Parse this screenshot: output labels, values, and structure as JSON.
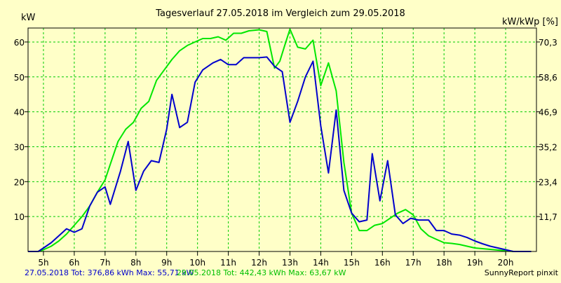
{
  "chart_data": {
    "type": "line",
    "title": "Tagesverlauf 27.05.2018 im Vergleich zum 29.05.2018",
    "ylabel": "kW",
    "ylabel_right": "kW/kWp [%]",
    "xlim": [
      4.5,
      21
    ],
    "ylim": [
      0,
      64
    ],
    "x_ticks": [
      {
        "x": 5,
        "label": "5h"
      },
      {
        "x": 6,
        "label": "6h"
      },
      {
        "x": 7,
        "label": "7h"
      },
      {
        "x": 8,
        "label": "8h"
      },
      {
        "x": 9,
        "label": "9h"
      },
      {
        "x": 10,
        "label": "10h"
      },
      {
        "x": 11,
        "label": "11h"
      },
      {
        "x": 12,
        "label": "12h"
      },
      {
        "x": 13,
        "label": "13h"
      },
      {
        "x": 14,
        "label": "14h"
      },
      {
        "x": 15,
        "label": "15h"
      },
      {
        "x": 16,
        "label": "16h"
      },
      {
        "x": 17,
        "label": "17h"
      },
      {
        "x": 18,
        "label": "18h"
      },
      {
        "x": 19,
        "label": "19h"
      },
      {
        "x": 20,
        "label": "20h"
      }
    ],
    "y_ticks": [
      {
        "y": 10,
        "label": "10"
      },
      {
        "y": 20,
        "label": "20"
      },
      {
        "y": 30,
        "label": "30"
      },
      {
        "y": 40,
        "label": "40"
      },
      {
        "y": 50,
        "label": "50"
      },
      {
        "y": 60,
        "label": "60"
      }
    ],
    "y2_ticks": [
      {
        "y": 10,
        "label": "11,7"
      },
      {
        "y": 20,
        "label": "23,4"
      },
      {
        "y": 30,
        "label": "35,2"
      },
      {
        "y": 40,
        "label": "46,9"
      },
      {
        "y": 50,
        "label": "58,6"
      },
      {
        "y": 60,
        "label": "70,3"
      }
    ],
    "grid": true,
    "series": [
      {
        "name": "27.05.2018",
        "color": "#0000cc",
        "points": [
          [
            4.5,
            0
          ],
          [
            4.83,
            0
          ],
          [
            5.0,
            1.0
          ],
          [
            5.25,
            2.5
          ],
          [
            5.5,
            4.5
          ],
          [
            5.75,
            6.5
          ],
          [
            6.0,
            5.5
          ],
          [
            6.25,
            6.5
          ],
          [
            6.5,
            13
          ],
          [
            6.75,
            17
          ],
          [
            7.0,
            18.5
          ],
          [
            7.17,
            13.5
          ],
          [
            7.5,
            23
          ],
          [
            7.75,
            31.5
          ],
          [
            8.0,
            17.5
          ],
          [
            8.25,
            23
          ],
          [
            8.5,
            26
          ],
          [
            8.75,
            25.5
          ],
          [
            9.0,
            35
          ],
          [
            9.17,
            45
          ],
          [
            9.42,
            35.5
          ],
          [
            9.67,
            37
          ],
          [
            9.92,
            48.5
          ],
          [
            10.17,
            52
          ],
          [
            10.5,
            54
          ],
          [
            10.75,
            55
          ],
          [
            11.0,
            53.5
          ],
          [
            11.25,
            53.5
          ],
          [
            11.5,
            55.5
          ],
          [
            11.75,
            55.5
          ],
          [
            12.0,
            55.5
          ],
          [
            12.25,
            55.7
          ],
          [
            12.5,
            53
          ],
          [
            12.75,
            51.5
          ],
          [
            13.0,
            37
          ],
          [
            13.25,
            43
          ],
          [
            13.5,
            50
          ],
          [
            13.75,
            54.5
          ],
          [
            14.0,
            36
          ],
          [
            14.25,
            22.5
          ],
          [
            14.5,
            40.5
          ],
          [
            14.75,
            17.5
          ],
          [
            15.0,
            11
          ],
          [
            15.25,
            8.5
          ],
          [
            15.5,
            9
          ],
          [
            15.67,
            28
          ],
          [
            15.92,
            14.5
          ],
          [
            16.17,
            26
          ],
          [
            16.42,
            10.5
          ],
          [
            16.67,
            8
          ],
          [
            16.92,
            9.5
          ],
          [
            17.17,
            9
          ],
          [
            17.5,
            9
          ],
          [
            17.75,
            6
          ],
          [
            18.0,
            6
          ],
          [
            18.25,
            5
          ],
          [
            18.5,
            4.7
          ],
          [
            18.75,
            4
          ],
          [
            19.0,
            3
          ],
          [
            19.25,
            2.2
          ],
          [
            19.5,
            1.5
          ],
          [
            19.75,
            1
          ],
          [
            20.0,
            0.5
          ],
          [
            20.25,
            0
          ],
          [
            20.83,
            0
          ]
        ]
      },
      {
        "name": "29.05.2018",
        "color": "#00e600",
        "points": [
          [
            4.5,
            0
          ],
          [
            4.83,
            0
          ],
          [
            5.0,
            0.5
          ],
          [
            5.25,
            1.5
          ],
          [
            5.5,
            3
          ],
          [
            5.75,
            5
          ],
          [
            6.0,
            7.5
          ],
          [
            6.25,
            10
          ],
          [
            6.5,
            13
          ],
          [
            6.75,
            17
          ],
          [
            7.0,
            20.5
          ],
          [
            7.17,
            25
          ],
          [
            7.42,
            31.5
          ],
          [
            7.67,
            35
          ],
          [
            7.92,
            37
          ],
          [
            8.17,
            41
          ],
          [
            8.42,
            43
          ],
          [
            8.67,
            49
          ],
          [
            8.92,
            52
          ],
          [
            9.17,
            55
          ],
          [
            9.42,
            57.5
          ],
          [
            9.67,
            59
          ],
          [
            9.92,
            60
          ],
          [
            10.17,
            61
          ],
          [
            10.42,
            61
          ],
          [
            10.67,
            61.5
          ],
          [
            10.92,
            60.5
          ],
          [
            11.17,
            62.5
          ],
          [
            11.42,
            62.5
          ],
          [
            11.67,
            63.2
          ],
          [
            12.0,
            63.5
          ],
          [
            12.25,
            63
          ],
          [
            12.5,
            52.5
          ],
          [
            12.67,
            54.5
          ],
          [
            12.83,
            59
          ],
          [
            13.0,
            63.67
          ],
          [
            13.25,
            58.5
          ],
          [
            13.5,
            58
          ],
          [
            13.75,
            60.5
          ],
          [
            14.0,
            47.5
          ],
          [
            14.25,
            54
          ],
          [
            14.5,
            46
          ],
          [
            14.75,
            25.5
          ],
          [
            15.0,
            11
          ],
          [
            15.25,
            6
          ],
          [
            15.5,
            6
          ],
          [
            15.75,
            7.5
          ],
          [
            16.0,
            8
          ],
          [
            16.25,
            9.5
          ],
          [
            16.5,
            11
          ],
          [
            16.75,
            12
          ],
          [
            17.0,
            10.5
          ],
          [
            17.25,
            6.5
          ],
          [
            17.5,
            4.5
          ],
          [
            17.75,
            3.5
          ],
          [
            18.0,
            2.5
          ],
          [
            18.25,
            2.3
          ],
          [
            18.5,
            2
          ],
          [
            18.75,
            1.5
          ],
          [
            19.0,
            1
          ],
          [
            19.25,
            0.8
          ],
          [
            19.5,
            0.6
          ],
          [
            19.75,
            0.4
          ],
          [
            20.0,
            0.2
          ],
          [
            20.25,
            0
          ],
          [
            20.83,
            0
          ]
        ]
      }
    ]
  },
  "footer": {
    "series1_summary": "27.05.2018 Tot: 376,86 kWh Max: 55,71 kW",
    "series2_summary": "29.05.2018 Tot: 442,43 kWh Max: 63,67 kW",
    "brand": "SunnyReport pinxit"
  },
  "colors": {
    "background": "#ffffc8",
    "grid": "#00cc00",
    "axis": "#000000"
  }
}
